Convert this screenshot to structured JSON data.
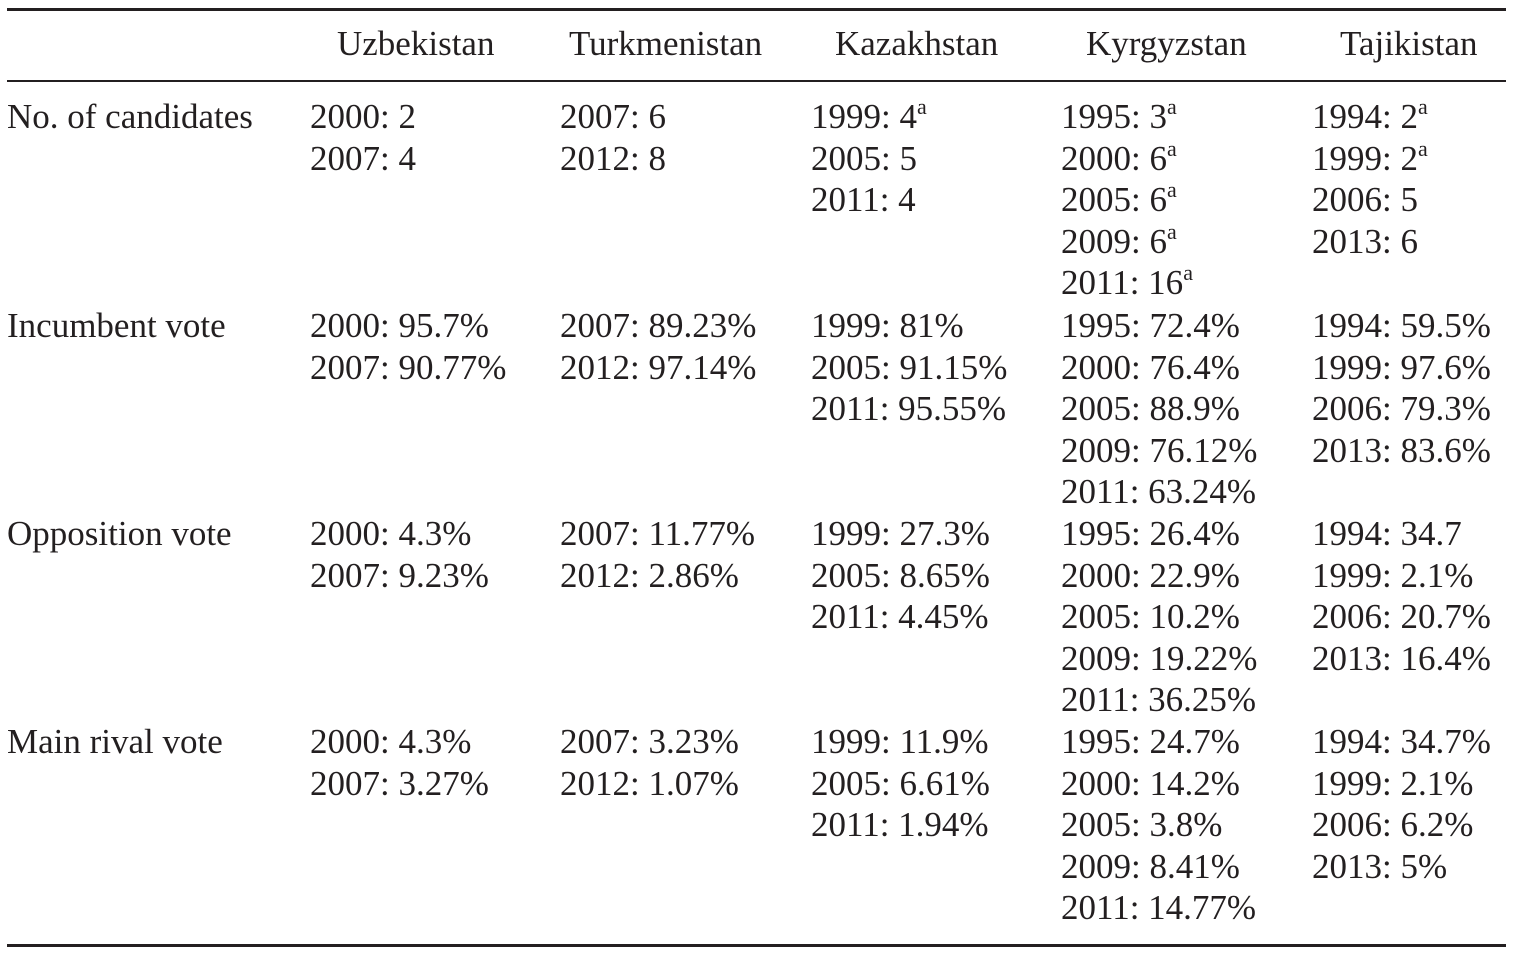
{
  "table": {
    "columns": [
      "Uzbekistan",
      "Turkmenistan",
      "Kazakhstan",
      "Kyrgyzstan",
      "Tajikistan"
    ],
    "rows": [
      {
        "label": "No. of candidates",
        "cells": [
          [
            {
              "text": "2000: 2",
              "sup": ""
            },
            {
              "text": "2007: 4",
              "sup": ""
            }
          ],
          [
            {
              "text": "2007: 6",
              "sup": ""
            },
            {
              "text": "2012: 8",
              "sup": ""
            }
          ],
          [
            {
              "text": "1999: 4",
              "sup": "a"
            },
            {
              "text": "2005: 5",
              "sup": ""
            },
            {
              "text": "2011: 4",
              "sup": ""
            }
          ],
          [
            {
              "text": "1995: 3",
              "sup": "a"
            },
            {
              "text": "2000: 6",
              "sup": "a"
            },
            {
              "text": "2005: 6",
              "sup": "a"
            },
            {
              "text": "2009: 6",
              "sup": "a"
            },
            {
              "text": "2011: 16",
              "sup": "a"
            }
          ],
          [
            {
              "text": "1994: 2",
              "sup": "a"
            },
            {
              "text": "1999: 2",
              "sup": "a"
            },
            {
              "text": "2006: 5",
              "sup": ""
            },
            {
              "text": "2013: 6",
              "sup": ""
            }
          ]
        ]
      },
      {
        "label": "Incumbent vote",
        "cells": [
          [
            {
              "text": "2000: 95.7%",
              "sup": ""
            },
            {
              "text": "2007: 90.77%",
              "sup": ""
            }
          ],
          [
            {
              "text": "2007: 89.23%",
              "sup": ""
            },
            {
              "text": "2012: 97.14%",
              "sup": ""
            }
          ],
          [
            {
              "text": "1999: 81%",
              "sup": ""
            },
            {
              "text": "2005: 91.15%",
              "sup": ""
            },
            {
              "text": "2011: 95.55%",
              "sup": ""
            }
          ],
          [
            {
              "text": "1995: 72.4%",
              "sup": ""
            },
            {
              "text": "2000: 76.4%",
              "sup": ""
            },
            {
              "text": "2005: 88.9%",
              "sup": ""
            },
            {
              "text": "2009: 76.12%",
              "sup": ""
            },
            {
              "text": "2011: 63.24%",
              "sup": ""
            }
          ],
          [
            {
              "text": "1994: 59.5%",
              "sup": ""
            },
            {
              "text": "1999: 97.6%",
              "sup": ""
            },
            {
              "text": "2006: 79.3%",
              "sup": ""
            },
            {
              "text": "2013: 83.6%",
              "sup": ""
            }
          ]
        ]
      },
      {
        "label": "Opposition vote",
        "cells": [
          [
            {
              "text": "2000: 4.3%",
              "sup": ""
            },
            {
              "text": "2007: 9.23%",
              "sup": ""
            }
          ],
          [
            {
              "text": "2007: 11.77%",
              "sup": ""
            },
            {
              "text": "2012: 2.86%",
              "sup": ""
            }
          ],
          [
            {
              "text": "1999: 27.3%",
              "sup": ""
            },
            {
              "text": "2005: 8.65%",
              "sup": ""
            },
            {
              "text": "2011: 4.45%",
              "sup": ""
            }
          ],
          [
            {
              "text": "1995: 26.4%",
              "sup": ""
            },
            {
              "text": "2000: 22.9%",
              "sup": ""
            },
            {
              "text": "2005: 10.2%",
              "sup": ""
            },
            {
              "text": "2009: 19.22%",
              "sup": ""
            },
            {
              "text": "2011: 36.25%",
              "sup": ""
            }
          ],
          [
            {
              "text": "1994: 34.7",
              "sup": ""
            },
            {
              "text": "1999: 2.1%",
              "sup": ""
            },
            {
              "text": "2006: 20.7%",
              "sup": ""
            },
            {
              "text": "2013: 16.4%",
              "sup": ""
            }
          ]
        ]
      },
      {
        "label": "Main rival vote",
        "cells": [
          [
            {
              "text": "2000: 4.3%",
              "sup": ""
            },
            {
              "text": "2007: 3.27%",
              "sup": ""
            }
          ],
          [
            {
              "text": "2007: 3.23%",
              "sup": ""
            },
            {
              "text": "2012: 1.07%",
              "sup": ""
            }
          ],
          [
            {
              "text": "1999: 11.9%",
              "sup": ""
            },
            {
              "text": "2005: 6.61%",
              "sup": ""
            },
            {
              "text": "2011: 1.94%",
              "sup": ""
            }
          ],
          [
            {
              "text": "1995: 24.7%",
              "sup": ""
            },
            {
              "text": "2000: 14.2%",
              "sup": ""
            },
            {
              "text": "2005: 3.8%",
              "sup": ""
            },
            {
              "text": "2009: 8.41%",
              "sup": ""
            },
            {
              "text": "2011: 14.77%",
              "sup": ""
            }
          ],
          [
            {
              "text": "1994: 34.7%",
              "sup": ""
            },
            {
              "text": "1999: 2.1%",
              "sup": ""
            },
            {
              "text": "2006: 6.2%",
              "sup": ""
            },
            {
              "text": "2013: 5%",
              "sup": ""
            }
          ]
        ]
      }
    ]
  }
}
